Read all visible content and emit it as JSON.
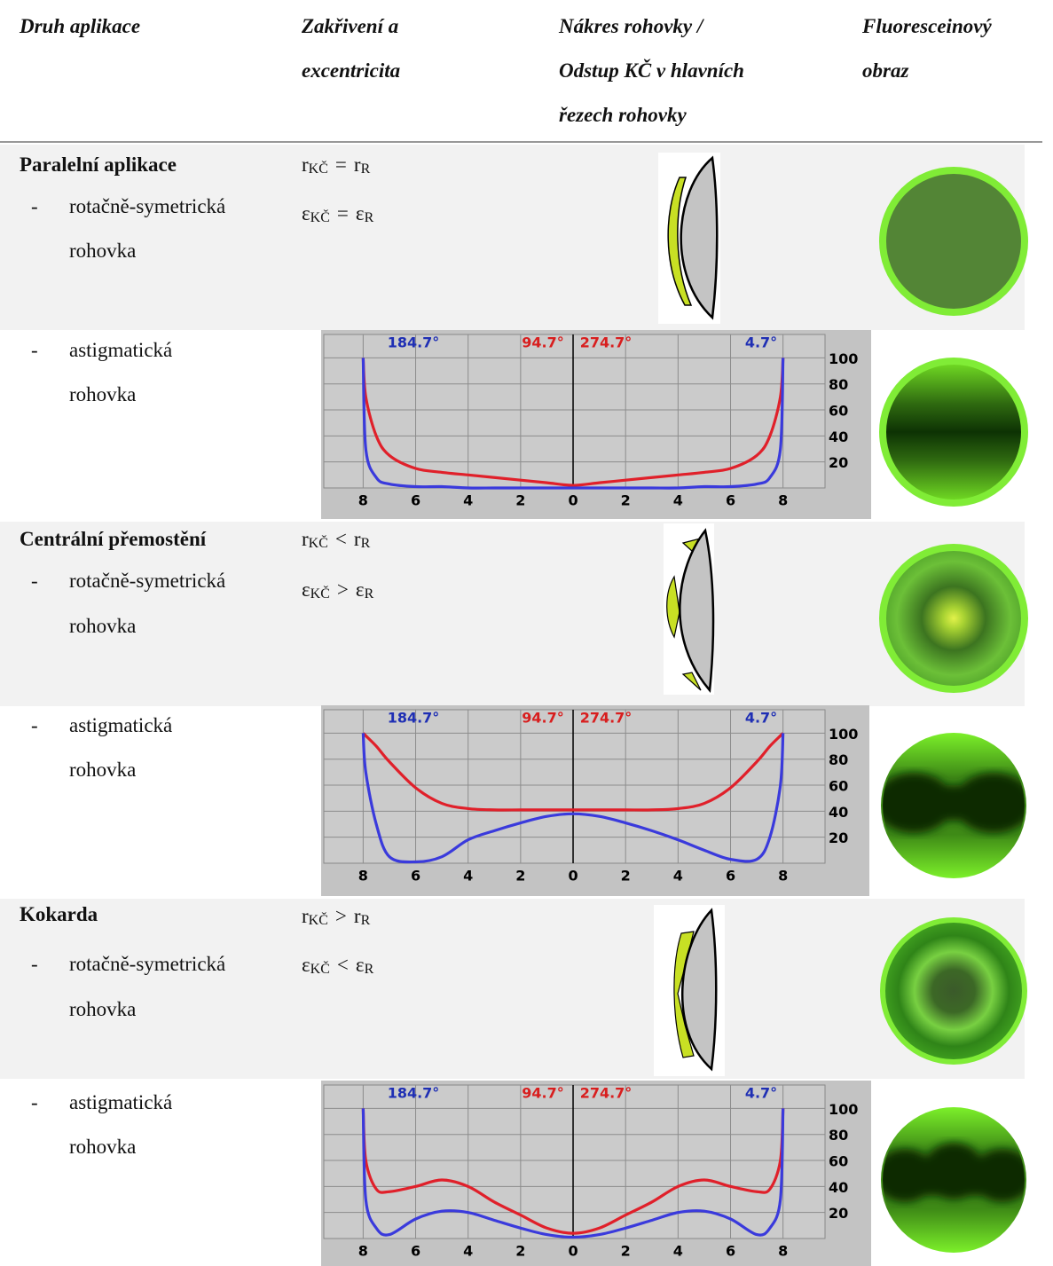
{
  "header": {
    "columns": [
      [
        "Druh aplikace"
      ],
      [
        "Zakřivení a",
        "excentricita"
      ],
      [
        "Nákres rohovky /",
        "Odstup KČ v hlavních",
        "řezech rohovky"
      ],
      [
        "Fluoresceinový",
        "obraz"
      ]
    ]
  },
  "sections": [
    {
      "title": "Paralelní aplikace",
      "curvature": {
        "symbol": "r",
        "lens": "KČ",
        "relation": "=",
        "cornea": "R"
      },
      "eccentricity": {
        "symbol": "ε",
        "lens": "KČ",
        "relation": "=",
        "cornea": "R"
      },
      "rows": [
        {
          "dash": "-",
          "lines": [
            "rotačně-symetrická",
            "rohovka"
          ]
        },
        {
          "dash": "-",
          "lines": [
            "astigmatická",
            "rohovka"
          ]
        }
      ]
    },
    {
      "title": "Centrální přemostění",
      "curvature": {
        "symbol": "r",
        "lens": "KČ",
        "relation": "<",
        "cornea": "R"
      },
      "eccentricity": {
        "symbol": "ε",
        "lens": "KČ",
        "relation": ">",
        "cornea": "R"
      },
      "rows": [
        {
          "dash": "-",
          "lines": [
            "rotačně-symetrická",
            "rohovka"
          ]
        },
        {
          "dash": "-",
          "lines": [
            "astigmatická",
            "rohovka"
          ]
        }
      ]
    },
    {
      "title": "Kokarda",
      "curvature": {
        "symbol": "r",
        "lens": "KČ",
        "relation": ">",
        "cornea": "R"
      },
      "eccentricity": {
        "symbol": "ε",
        "lens": "KČ",
        "relation": "<",
        "cornea": "R"
      },
      "rows": [
        {
          "dash": "-",
          "lines": [
            "rotačně-symetrická",
            "rohovka"
          ]
        },
        {
          "dash": "-",
          "lines": [
            "astigmatická",
            "rohovka"
          ]
        }
      ]
    }
  ],
  "chart_data": [
    {
      "type": "line",
      "annotations": [
        {
          "text": "184.7°",
          "color": "#1f2fb4"
        },
        {
          "text": "94.7°",
          "color": "#d81e1e"
        },
        {
          "text": "274.7°",
          "color": "#d81e1e"
        },
        {
          "text": "4.7°",
          "color": "#1f2fb4"
        }
      ],
      "x": [
        -8,
        -7.9,
        -7.5,
        -7,
        -6,
        -5,
        -4,
        -3,
        -2,
        -1,
        0,
        1,
        2,
        3,
        4,
        5,
        6,
        7,
        7.5,
        7.9,
        8
      ],
      "series": [
        {
          "color": "#e0202a",
          "values": [
            100,
            70,
            40,
            25,
            15,
            12,
            10,
            8,
            6,
            4,
            2,
            4,
            6,
            8,
            10,
            12,
            15,
            25,
            40,
            70,
            100
          ]
        },
        {
          "color": "#3a3adc",
          "values": [
            100,
            30,
            8,
            3,
            1,
            1,
            0,
            0,
            0,
            0,
            0,
            0,
            0,
            0,
            0,
            1,
            1,
            3,
            8,
            30,
            100
          ]
        }
      ],
      "xlim": [
        -9.5,
        9.6
      ],
      "ylim": [
        0,
        118
      ],
      "xticks": [
        {
          "value": -8,
          "label": "8"
        },
        {
          "value": -6,
          "label": "6"
        },
        {
          "value": -4,
          "label": "4"
        },
        {
          "value": -2,
          "label": "2"
        },
        0,
        2,
        4,
        6,
        8
      ],
      "yticks": [
        20,
        40,
        60,
        80,
        100
      ],
      "grid": true
    },
    {
      "type": "line",
      "annotations": [
        {
          "text": "184.7°",
          "color": "#1f2fb4"
        },
        {
          "text": "94.7°",
          "color": "#d81e1e"
        },
        {
          "text": "274.7°",
          "color": "#d81e1e"
        },
        {
          "text": "4.7°",
          "color": "#1f2fb4"
        }
      ],
      "x": [
        -8,
        -7.9,
        -7.5,
        -7,
        -6,
        -5,
        -4,
        -3,
        -2,
        -1,
        0,
        1,
        2,
        3,
        4,
        5,
        6,
        7,
        7.5,
        7.9,
        8
      ],
      "series": [
        {
          "color": "#e0202a",
          "values": [
            100,
            98,
            90,
            78,
            58,
            46,
            42,
            41,
            41,
            41,
            41,
            41,
            41,
            41,
            42,
            46,
            58,
            78,
            90,
            98,
            100
          ]
        },
        {
          "color": "#3a3adc",
          "values": [
            100,
            70,
            30,
            5,
            1,
            5,
            18,
            25,
            31,
            36,
            38,
            36,
            31,
            25,
            18,
            10,
            3,
            3,
            20,
            60,
            100
          ]
        }
      ],
      "xlim": [
        -9.5,
        9.6
      ],
      "ylim": [
        0,
        118
      ],
      "xticks": [
        {
          "value": -8,
          "label": "8"
        },
        {
          "value": -6,
          "label": "6"
        },
        {
          "value": -4,
          "label": "4"
        },
        {
          "value": -2,
          "label": "2"
        },
        0,
        2,
        4,
        6,
        8
      ],
      "yticks": [
        20,
        40,
        60,
        80,
        100
      ],
      "grid": true
    },
    {
      "type": "line",
      "annotations": [
        {
          "text": "184.7°",
          "color": "#1f2fb4"
        },
        {
          "text": "94.7°",
          "color": "#d81e1e"
        },
        {
          "text": "274.7°",
          "color": "#d81e1e"
        },
        {
          "text": "4.7°",
          "color": "#1f2fb4"
        }
      ],
      "x": [
        -8,
        -7.9,
        -7.5,
        -7,
        -6,
        -5,
        -4,
        -3,
        -2,
        -1,
        0,
        1,
        2,
        3,
        4,
        5,
        6,
        7,
        7.5,
        7.9,
        8
      ],
      "series": [
        {
          "color": "#e0202a",
          "values": [
            100,
            60,
            38,
            36,
            40,
            45,
            40,
            28,
            18,
            8,
            4,
            8,
            18,
            28,
            40,
            45,
            40,
            36,
            38,
            60,
            100
          ]
        },
        {
          "color": "#3a3adc",
          "values": [
            100,
            30,
            8,
            3,
            15,
            21,
            20,
            14,
            8,
            3,
            1,
            3,
            8,
            14,
            20,
            21,
            15,
            3,
            8,
            30,
            100
          ]
        }
      ],
      "xlim": [
        -9.5,
        9.6
      ],
      "ylim": [
        0,
        118
      ],
      "xticks": [
        {
          "value": -8,
          "label": "8"
        },
        {
          "value": -6,
          "label": "6"
        },
        {
          "value": -4,
          "label": "4"
        },
        {
          "value": -2,
          "label": "2"
        },
        0,
        2,
        4,
        6,
        8
      ],
      "yticks": [
        20,
        40,
        60,
        80,
        100
      ],
      "grid": true
    }
  ]
}
